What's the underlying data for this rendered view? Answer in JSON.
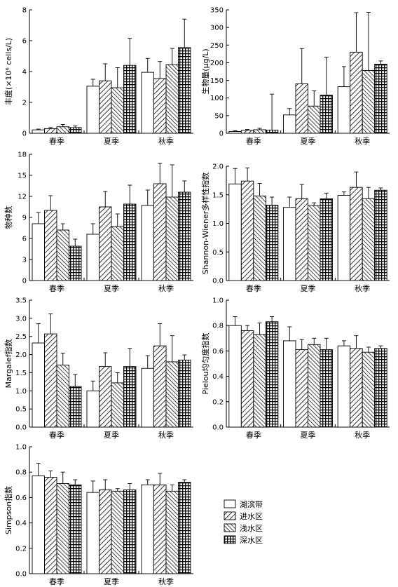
{
  "legend": {
    "items": [
      "湖滨带",
      "进水区",
      "浅水区",
      "深水区"
    ],
    "patterns": [
      "white",
      "diag-right",
      "diag-left",
      "grid"
    ]
  },
  "chart_data": [
    {
      "type": "bar",
      "ylabel": "丰度(×10⁶ cells/L)",
      "ylim": [
        0,
        8
      ],
      "yticks": [
        0,
        2,
        4,
        6,
        8
      ],
      "categories": [
        "春季",
        "夏季",
        "秋季"
      ],
      "series": [
        {
          "name": "湖滨带",
          "values": [
            0.22,
            3.05,
            3.95
          ],
          "errors": [
            0.05,
            0.45,
            0.9
          ]
        },
        {
          "name": "进水区",
          "values": [
            0.3,
            3.4,
            3.55
          ],
          "errors": [
            0.07,
            1.1,
            1.1
          ]
        },
        {
          "name": "浅水区",
          "values": [
            0.42,
            2.95,
            4.45
          ],
          "errors": [
            0.15,
            1.3,
            1.05
          ]
        },
        {
          "name": "深水区",
          "values": [
            0.37,
            4.4,
            5.55
          ],
          "errors": [
            0.1,
            1.75,
            1.85
          ]
        }
      ]
    },
    {
      "type": "bar",
      "ylabel": "生物量(μg/L)",
      "ylim": [
        0,
        350
      ],
      "yticks": [
        0,
        50,
        100,
        150,
        200,
        250,
        300,
        350
      ],
      "categories": [
        "春季",
        "夏季",
        "秋季"
      ],
      "series": [
        {
          "name": "湖滨带",
          "values": [
            5,
            52,
            132
          ],
          "errors": [
            2,
            18,
            57
          ]
        },
        {
          "name": "进水区",
          "values": [
            8,
            140,
            230
          ],
          "errors": [
            3,
            100,
            112
          ]
        },
        {
          "name": "浅水区",
          "values": [
            10,
            77,
            178
          ],
          "errors": [
            4,
            43,
            165
          ]
        },
        {
          "name": "深水区",
          "values": [
            9,
            108,
            196
          ],
          "errors": [
            102,
            108,
            9
          ]
        }
      ]
    },
    {
      "type": "bar",
      "ylabel": "物种数",
      "ylim": [
        0,
        18
      ],
      "yticks": [
        0,
        3,
        6,
        9,
        12,
        15,
        18
      ],
      "categories": [
        "春季",
        "夏季",
        "秋季"
      ],
      "series": [
        {
          "name": "湖滨带",
          "values": [
            8.1,
            6.6,
            10.7
          ],
          "errors": [
            1.6,
            1.5,
            2.2
          ]
        },
        {
          "name": "进水区",
          "values": [
            10.0,
            10.5,
            13.8
          ],
          "errors": [
            2.1,
            2.2,
            2.9
          ]
        },
        {
          "name": "浅水区",
          "values": [
            7.2,
            7.7,
            11.9
          ],
          "errors": [
            0.9,
            1.8,
            4.6
          ]
        },
        {
          "name": "深水区",
          "values": [
            4.9,
            10.9,
            12.6
          ],
          "errors": [
            1.0,
            2.7,
            1.6
          ]
        }
      ]
    },
    {
      "type": "bar",
      "ylabel": "Shannon-Wiener多样性指数",
      "ylim": [
        0,
        2.0
      ],
      "yticks": [
        0,
        0.5,
        1.0,
        1.5,
        2.0
      ],
      "categories": [
        "春季",
        "夏季",
        "秋季"
      ],
      "series": [
        {
          "name": "湖滨带",
          "values": [
            1.69,
            1.28,
            1.49
          ],
          "errors": [
            0.27,
            0.18,
            0.06
          ]
        },
        {
          "name": "进水区",
          "values": [
            1.74,
            1.43,
            1.63
          ],
          "errors": [
            0.23,
            0.25,
            0.27
          ]
        },
        {
          "name": "浅水区",
          "values": [
            1.48,
            1.31,
            1.43
          ],
          "errors": [
            0.22,
            0.05,
            0.2
          ]
        },
        {
          "name": "深水区",
          "values": [
            1.32,
            1.43,
            1.58
          ],
          "errors": [
            0.14,
            0.1,
            0.04
          ]
        }
      ]
    },
    {
      "type": "bar",
      "ylabel": "Margalef指数",
      "ylim": [
        0,
        3.5
      ],
      "yticks": [
        0,
        0.5,
        1.0,
        1.5,
        2.0,
        2.5,
        3.0,
        3.5
      ],
      "categories": [
        "春季",
        "夏季",
        "秋季"
      ],
      "series": [
        {
          "name": "湖滨带",
          "values": [
            2.32,
            1.0,
            1.62
          ],
          "errors": [
            0.53,
            0.27,
            0.35
          ]
        },
        {
          "name": "进水区",
          "values": [
            2.57,
            1.67,
            2.24
          ],
          "errors": [
            0.55,
            0.38,
            0.61
          ]
        },
        {
          "name": "浅水区",
          "values": [
            1.71,
            1.22,
            1.8
          ],
          "errors": [
            0.33,
            0.28,
            0.72
          ]
        },
        {
          "name": "深水区",
          "values": [
            1.12,
            1.67,
            1.85
          ],
          "errors": [
            0.33,
            0.5,
            0.14
          ]
        }
      ]
    },
    {
      "type": "bar",
      "ylabel": "Pielou均匀度指数",
      "ylim": [
        0,
        1.0
      ],
      "yticks": [
        0,
        0.2,
        0.4,
        0.6,
        0.8,
        1.0
      ],
      "categories": [
        "春季",
        "夏季",
        "秋季"
      ],
      "series": [
        {
          "name": "湖滨带",
          "values": [
            0.8,
            0.68,
            0.64
          ],
          "errors": [
            0.07,
            0.11,
            0.04
          ]
        },
        {
          "name": "进水区",
          "values": [
            0.76,
            0.61,
            0.62
          ],
          "errors": [
            0.04,
            0.08,
            0.1
          ]
        },
        {
          "name": "浅水区",
          "values": [
            0.73,
            0.65,
            0.59
          ],
          "errors": [
            0.09,
            0.05,
            0.04
          ]
        },
        {
          "name": "深水区",
          "values": [
            0.83,
            0.61,
            0.62
          ],
          "errors": [
            0.04,
            0.09,
            0.02
          ]
        }
      ]
    },
    {
      "type": "bar",
      "ylabel": "Simpson指数",
      "ylim": [
        0,
        1.0
      ],
      "yticks": [
        0,
        0.2,
        0.4,
        0.6,
        0.8,
        1.0
      ],
      "categories": [
        "春季",
        "夏季",
        "秋季"
      ],
      "series": [
        {
          "name": "湖滨带",
          "values": [
            0.77,
            0.64,
            0.7
          ],
          "errors": [
            0.1,
            0.09,
            0.04
          ]
        },
        {
          "name": "进水区",
          "values": [
            0.76,
            0.66,
            0.7
          ],
          "errors": [
            0.05,
            0.08,
            0.09
          ]
        },
        {
          "name": "浅水区",
          "values": [
            0.71,
            0.65,
            0.65
          ],
          "errors": [
            0.09,
            0.02,
            0.05
          ]
        },
        {
          "name": "深水区",
          "values": [
            0.7,
            0.66,
            0.72
          ],
          "errors": [
            0.04,
            0.05,
            0.02
          ]
        }
      ]
    }
  ]
}
